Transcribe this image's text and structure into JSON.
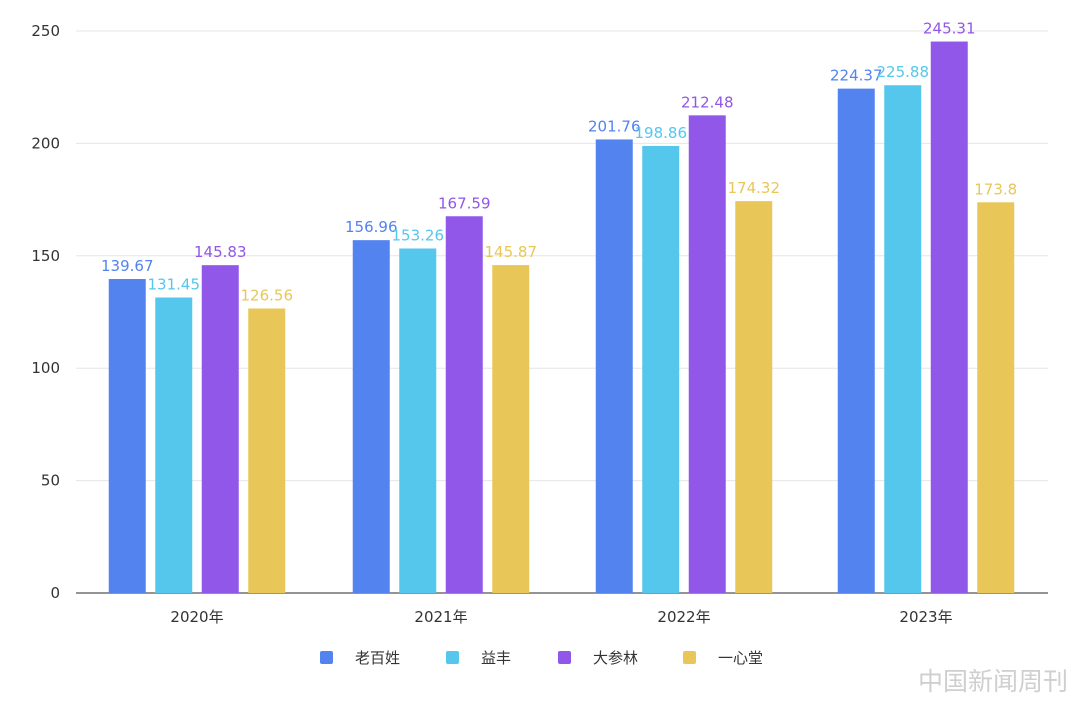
{
  "chart_data": {
    "type": "bar",
    "categories": [
      "2020年",
      "2021年",
      "2022年",
      "2023年"
    ],
    "series": [
      {
        "name": "老百姓",
        "values": [
          139.67,
          156.96,
          201.76,
          224.37
        ],
        "color": "#5383ef",
        "label_color": "#5383ef"
      },
      {
        "name": "益丰",
        "values": [
          131.45,
          153.26,
          198.86,
          225.88
        ],
        "color": "#55c7ec",
        "label_color": "#55c7ec"
      },
      {
        "name": "大参林",
        "values": [
          145.83,
          167.59,
          212.48,
          245.31
        ],
        "color": "#9057e8",
        "label_color": "#9057e8"
      },
      {
        "name": "一心堂",
        "values": [
          126.56,
          145.87,
          174.32,
          173.8
        ],
        "color": "#e8c758",
        "label_color": "#e8c758"
      }
    ],
    "ylim": [
      0,
      250
    ],
    "yticks": [
      0,
      50,
      100,
      150,
      200,
      250
    ],
    "grid": true,
    "legend_position": "bottom",
    "title": "",
    "xlabel": "",
    "ylabel": ""
  },
  "watermark": "中国新闻周刊"
}
